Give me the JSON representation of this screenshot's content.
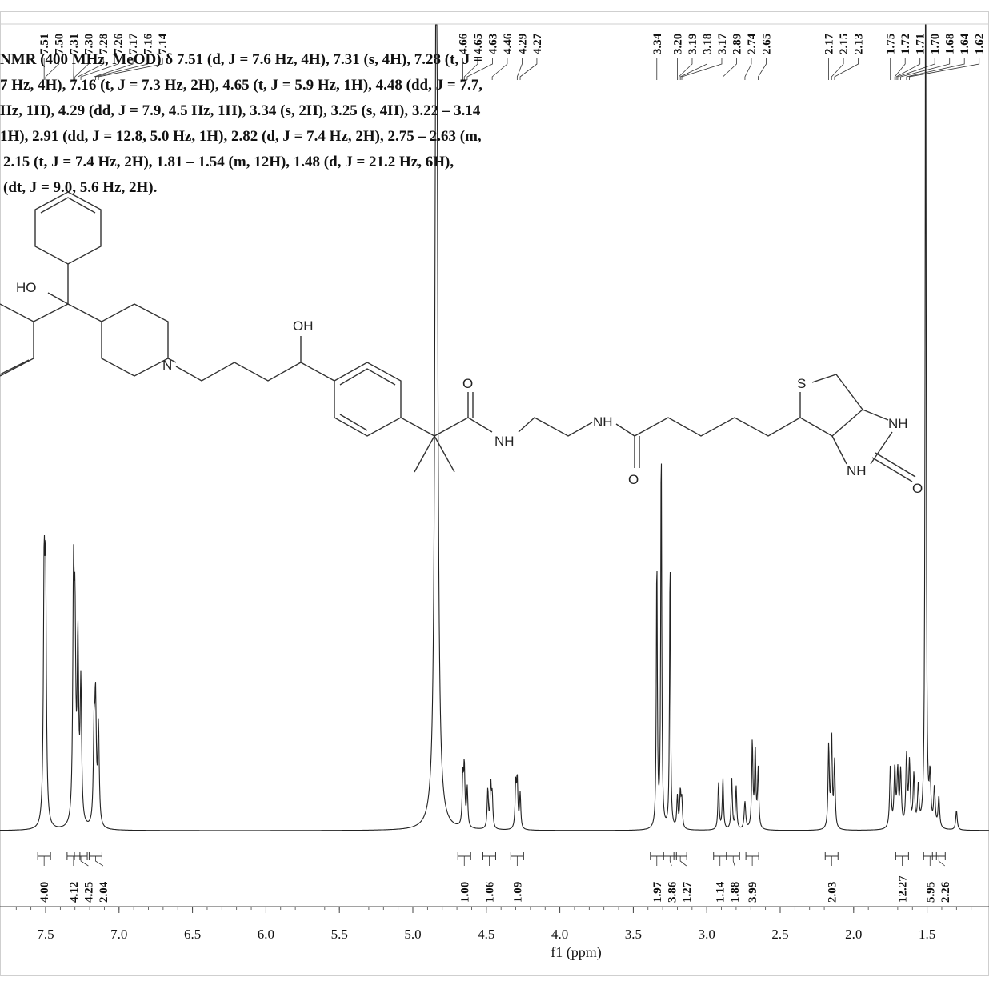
{
  "chart_data": {
    "type": "line",
    "title": "",
    "xlabel": "f1 (ppm)",
    "ylabel": "",
    "xlim": [
      7.7,
      1.2
    ],
    "x_reversed": true,
    "xticks": [
      7.5,
      7.0,
      6.5,
      6.0,
      5.5,
      5.0,
      4.5,
      4.0,
      3.5,
      3.0,
      2.5,
      2.0,
      1.5
    ],
    "peak_labels": [
      "7.51",
      "7.50",
      "7.31",
      "7.30",
      "7.28",
      "7.26",
      "7.17",
      "7.16",
      "7.14",
      "4.66",
      "4.65",
      "4.63",
      "4.46",
      "4.29",
      "4.27",
      "3.34",
      "3.20",
      "3.19",
      "3.18",
      "3.17",
      "2.89",
      "2.74",
      "2.65",
      "2.17",
      "2.15",
      "2.13",
      "1.75",
      "1.72",
      "1.71",
      "1.70",
      "1.68",
      "1.64",
      "1.62"
    ],
    "integrals": [
      {
        "center": 7.51,
        "value": "4.00"
      },
      {
        "center": 7.31,
        "value": "4.12"
      },
      {
        "center": 7.26,
        "value": "4.25"
      },
      {
        "center": 7.16,
        "value": "2.04"
      },
      {
        "center": 4.65,
        "value": "1.00"
      },
      {
        "center": 4.48,
        "value": "1.06"
      },
      {
        "center": 4.29,
        "value": "1.09"
      },
      {
        "center": 3.34,
        "value": "1.97"
      },
      {
        "center": 3.25,
        "value": "3.86"
      },
      {
        "center": 3.18,
        "value": "1.27"
      },
      {
        "center": 2.91,
        "value": "1.14"
      },
      {
        "center": 2.82,
        "value": "1.88"
      },
      {
        "center": 2.69,
        "value": "3.99"
      },
      {
        "center": 2.15,
        "value": "2.03"
      },
      {
        "center": 1.67,
        "value": "12.27"
      },
      {
        "center": 1.48,
        "value": "5.95"
      },
      {
        "center": 1.42,
        "value": "2.26"
      }
    ],
    "peaks": [
      {
        "ppm": 7.51,
        "h": 0.6,
        "w": 0.006
      },
      {
        "ppm": 7.5,
        "h": 0.58,
        "w": 0.006
      },
      {
        "ppm": 7.31,
        "h": 0.58,
        "w": 0.006
      },
      {
        "ppm": 7.3,
        "h": 0.45,
        "w": 0.006
      },
      {
        "ppm": 7.28,
        "h": 0.45,
        "w": 0.006
      },
      {
        "ppm": 7.26,
        "h": 0.35,
        "w": 0.006
      },
      {
        "ppm": 7.17,
        "h": 0.22,
        "w": 0.006
      },
      {
        "ppm": 7.16,
        "h": 0.3,
        "w": 0.006
      },
      {
        "ppm": 7.14,
        "h": 0.25,
        "w": 0.006
      },
      {
        "ppm": 4.84,
        "h": 2.6,
        "w": 0.01
      },
      {
        "ppm": 4.66,
        "h": 0.12,
        "w": 0.005
      },
      {
        "ppm": 4.65,
        "h": 0.15,
        "w": 0.005
      },
      {
        "ppm": 4.63,
        "h": 0.1,
        "w": 0.005
      },
      {
        "ppm": 4.49,
        "h": 0.1,
        "w": 0.005
      },
      {
        "ppm": 4.47,
        "h": 0.11,
        "w": 0.005
      },
      {
        "ppm": 4.46,
        "h": 0.08,
        "w": 0.005
      },
      {
        "ppm": 4.3,
        "h": 0.11,
        "w": 0.005
      },
      {
        "ppm": 4.29,
        "h": 0.12,
        "w": 0.005
      },
      {
        "ppm": 4.27,
        "h": 0.09,
        "w": 0.005
      },
      {
        "ppm": 3.34,
        "h": 0.7,
        "w": 0.004
      },
      {
        "ppm": 3.31,
        "h": 1.0,
        "w": 0.004
      },
      {
        "ppm": 3.25,
        "h": 0.7,
        "w": 0.004
      },
      {
        "ppm": 3.2,
        "h": 0.08,
        "w": 0.005
      },
      {
        "ppm": 3.18,
        "h": 0.09,
        "w": 0.005
      },
      {
        "ppm": 3.17,
        "h": 0.07,
        "w": 0.005
      },
      {
        "ppm": 2.92,
        "h": 0.12,
        "w": 0.005
      },
      {
        "ppm": 2.89,
        "h": 0.13,
        "w": 0.005
      },
      {
        "ppm": 2.83,
        "h": 0.13,
        "w": 0.005
      },
      {
        "ppm": 2.8,
        "h": 0.11,
        "w": 0.005
      },
      {
        "ppm": 2.74,
        "h": 0.07,
        "w": 0.006
      },
      {
        "ppm": 2.69,
        "h": 0.22,
        "w": 0.005
      },
      {
        "ppm": 2.67,
        "h": 0.2,
        "w": 0.005
      },
      {
        "ppm": 2.65,
        "h": 0.15,
        "w": 0.005
      },
      {
        "ppm": 2.17,
        "h": 0.21,
        "w": 0.005
      },
      {
        "ppm": 2.15,
        "h": 0.24,
        "w": 0.005
      },
      {
        "ppm": 2.13,
        "h": 0.17,
        "w": 0.005
      },
      {
        "ppm": 1.75,
        "h": 0.16,
        "w": 0.006
      },
      {
        "ppm": 1.72,
        "h": 0.15,
        "w": 0.006
      },
      {
        "ppm": 1.7,
        "h": 0.14,
        "w": 0.006
      },
      {
        "ppm": 1.68,
        "h": 0.14,
        "w": 0.006
      },
      {
        "ppm": 1.64,
        "h": 0.18,
        "w": 0.006
      },
      {
        "ppm": 1.62,
        "h": 0.16,
        "w": 0.006
      },
      {
        "ppm": 1.59,
        "h": 0.13,
        "w": 0.006
      },
      {
        "ppm": 1.56,
        "h": 0.1,
        "w": 0.006
      },
      {
        "ppm": 1.51,
        "h": 2.4,
        "w": 0.004
      },
      {
        "ppm": 1.48,
        "h": 0.12,
        "w": 0.006
      },
      {
        "ppm": 1.45,
        "h": 0.1,
        "w": 0.006
      },
      {
        "ppm": 1.42,
        "h": 0.08,
        "w": 0.006
      },
      {
        "ppm": 1.3,
        "h": 0.05,
        "w": 0.006
      }
    ]
  },
  "description": {
    "lines": [
      "NMR (400 MHz, MeOD) δ 7.51 (d, J = 7.6 Hz, 4H), 7.31 (s, 4H), 7.28 (t, J =",
      "7 Hz, 4H), 7.16 (t, J = 7.3 Hz, 2H), 4.65 (t, J = 5.9 Hz, 1H), 4.48 (dd, J = 7.7,",
      "Hz, 1H), 4.29 (dd, J = 7.9, 4.5 Hz, 1H), 3.34 (s, 2H), 3.25 (s, 4H), 3.22 – 3.14",
      "1H), 2.91 (dd, J = 12.8, 5.0 Hz, 1H), 2.82 (d, J = 7.4 Hz, 2H), 2.75 – 2.63 (m,",
      "2.15 (t, J = 7.4 Hz, 2H), 1.81 – 1.54 (m, 12H), 1.48 (d, J = 21.2 Hz, 6H),",
      "(dt, J = 9.0, 5.6 Hz, 2H)."
    ]
  },
  "molecule": {
    "atoms": {
      "ho": "HO",
      "oh": "OH",
      "n": "N",
      "o1": "O",
      "nh1": "NH",
      "nh2": "NH",
      "o2": "O",
      "s": "S",
      "nh3": "NH",
      "nh4": "NH",
      "o3": "O"
    }
  },
  "colors": {
    "line": "#222222",
    "frame": "#cccccc"
  }
}
